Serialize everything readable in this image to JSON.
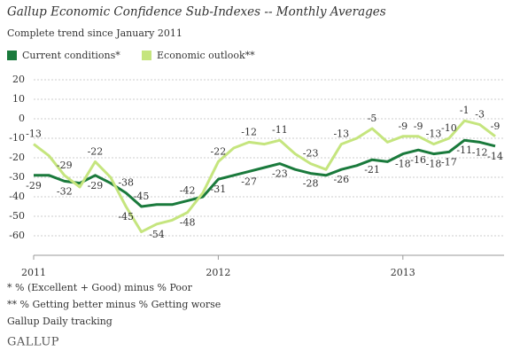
{
  "chart_data": {
    "type": "line",
    "title": "Gallup Economic Confidence Sub-Indexes -- Monthly Averages",
    "subtitle": "Complete trend since January 2011",
    "categories": [
      "2011",
      null,
      null,
      null,
      null,
      null,
      null,
      null,
      null,
      null,
      null,
      null,
      "2012",
      null,
      null,
      null,
      null,
      null,
      null,
      null,
      null,
      null,
      null,
      null,
      "2013",
      null,
      null,
      null,
      null,
      null,
      null
    ],
    "series": [
      {
        "name": "Current conditions*",
        "color": "#1a7a3c",
        "values": [
          -29,
          -29,
          -32,
          -33,
          -29,
          -33,
          -38,
          -45,
          -44,
          -44,
          -42,
          -40,
          -31,
          -29,
          -27,
          -25,
          -23,
          -26,
          -28,
          -29,
          -26,
          -24,
          -21,
          -22,
          -18,
          -16,
          -18,
          -17,
          -11,
          -12,
          -14
        ],
        "value_labels": [
          "-29",
          null,
          "-32",
          null,
          "-29",
          null,
          "-38",
          "-45",
          null,
          null,
          "-42",
          null,
          "-31",
          null,
          "-27",
          null,
          "-23",
          null,
          "-28",
          null,
          "-26",
          null,
          "-21",
          null,
          "-18",
          "-16",
          "-18",
          "-17",
          "-11",
          "-12",
          "-14"
        ]
      },
      {
        "name": "Economic outlook**",
        "color": "#c5e57e",
        "values": [
          -13,
          -19,
          -29,
          -35,
          -22,
          -30,
          -45,
          -58,
          -54,
          -52,
          -48,
          -38,
          -22,
          -15,
          -12,
          -13,
          -11,
          -18,
          -23,
          -26,
          -13,
          -10,
          -5,
          -12,
          -9,
          -9,
          -13,
          -10,
          -1,
          -3,
          -9
        ],
        "value_labels": [
          "-13",
          null,
          "-29",
          null,
          "-22",
          null,
          "-45",
          null,
          "-54",
          null,
          "-48",
          null,
          "-22",
          null,
          "-12",
          null,
          "-11",
          null,
          "-23",
          null,
          "-13",
          null,
          "-5",
          null,
          "-9",
          "-9",
          "-13",
          "-10",
          "-1",
          "-3",
          "-9"
        ]
      }
    ],
    "ylim": [
      -70,
      20
    ],
    "yticks": [
      20,
      10,
      0,
      -10,
      -20,
      -30,
      -40,
      -50,
      -60
    ],
    "grid": true,
    "footnotes": [
      "* % (Excellent + Good) minus % Poor",
      "** % Getting better minus % Getting worse",
      "Gallup Daily tracking"
    ],
    "logo": "GALLUP"
  }
}
